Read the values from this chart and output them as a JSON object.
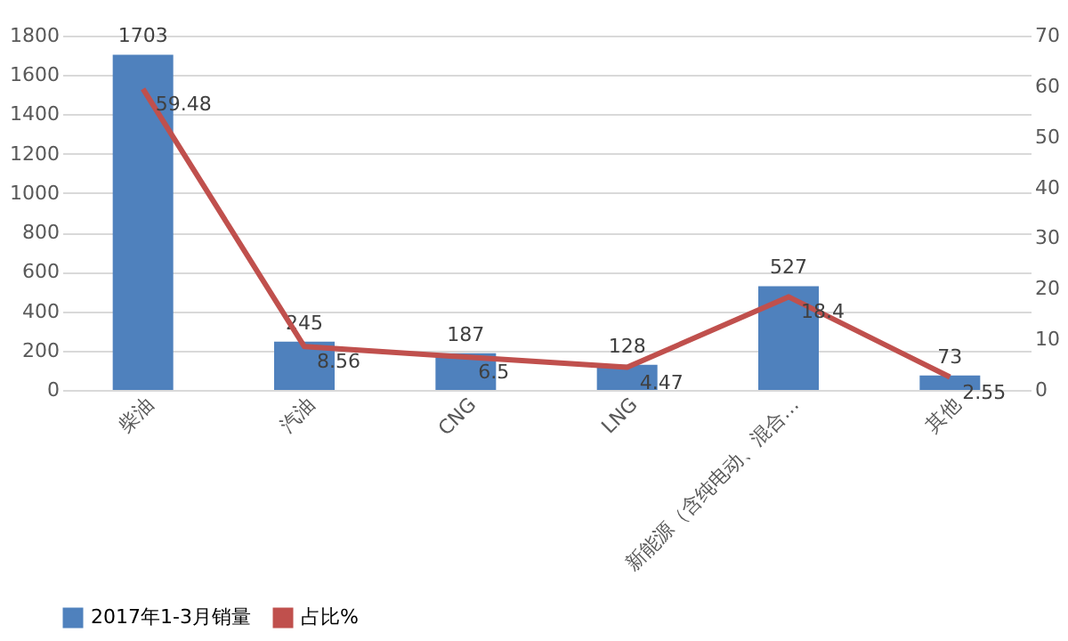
{
  "chart_data": {
    "type": "bar",
    "categories": [
      "柴油",
      "汽油",
      "CNG",
      "LNG",
      "新能源（含纯电动、混合…",
      "其他"
    ],
    "series": [
      {
        "name": "2017年1-3月销量",
        "type": "bar",
        "color": "#4f81bd",
        "values": [
          1703,
          245,
          187,
          128,
          527,
          73
        ]
      },
      {
        "name": "占比%",
        "type": "line",
        "axis": "y2",
        "color": "#c0504d",
        "values": [
          59.48,
          8.56,
          6.5,
          4.47,
          18.4,
          2.55
        ]
      }
    ],
    "ylim": [
      0,
      1800
    ],
    "yticks": [
      0,
      200,
      400,
      600,
      800,
      1000,
      1200,
      1400,
      1600,
      1800
    ],
    "y2lim": [
      0,
      70
    ],
    "y2ticks": [
      0,
      10,
      20,
      30,
      40,
      50,
      60,
      70
    ],
    "grid": "y",
    "legend": "bottom",
    "data_labels": true,
    "marker": "none",
    "line_style": "solid"
  }
}
